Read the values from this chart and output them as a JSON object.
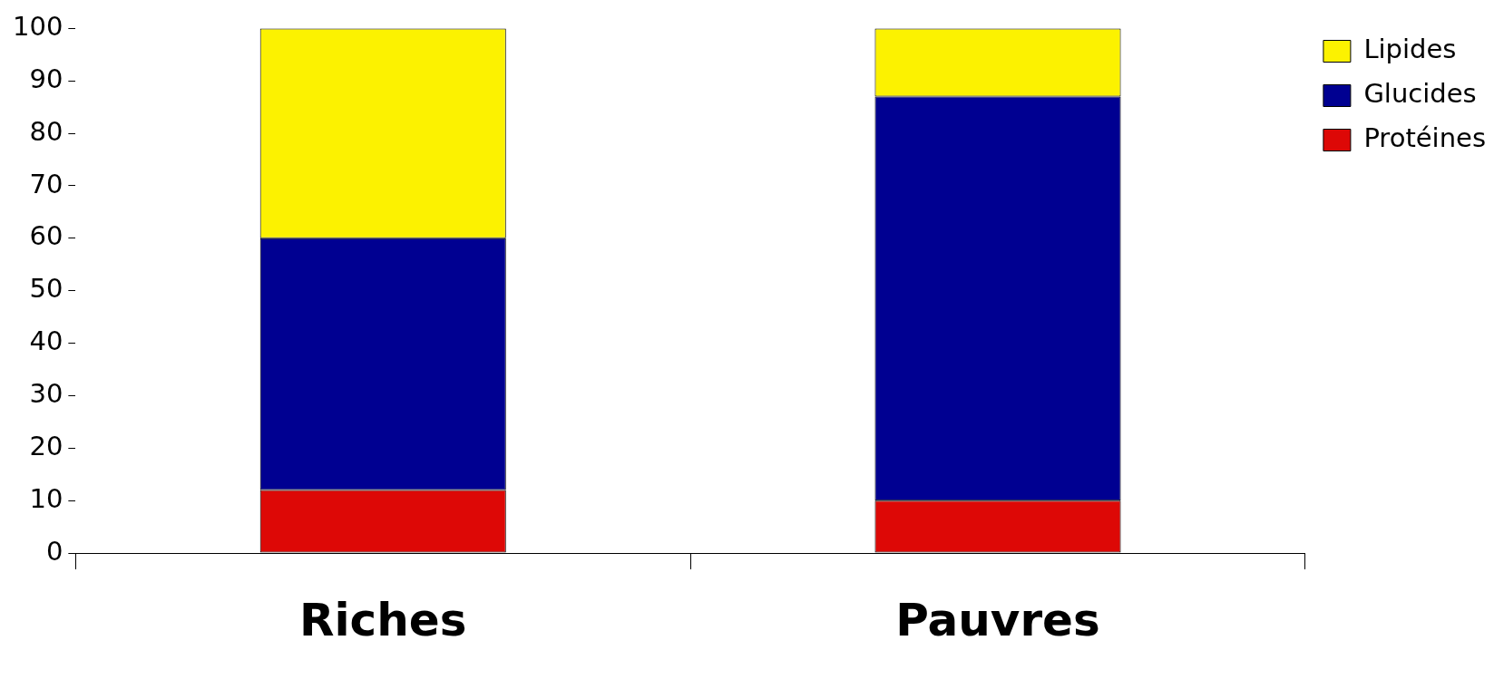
{
  "chart_data": {
    "type": "bar",
    "categories": [
      "Riches",
      "Pauvres"
    ],
    "stacked": true,
    "ylim": [
      0,
      100
    ],
    "yticks": [
      0,
      10,
      20,
      30,
      40,
      50,
      60,
      70,
      80,
      90,
      100
    ],
    "legend": "top right",
    "series": [
      {
        "name": "Protéines",
        "color": "#dd0806",
        "values": [
          12,
          10
        ]
      },
      {
        "name": "Glucides",
        "color": "#000091",
        "values": [
          48,
          77
        ]
      },
      {
        "name": "Lipides",
        "color": "#fcf200",
        "values": [
          40,
          13
        ]
      }
    ]
  }
}
